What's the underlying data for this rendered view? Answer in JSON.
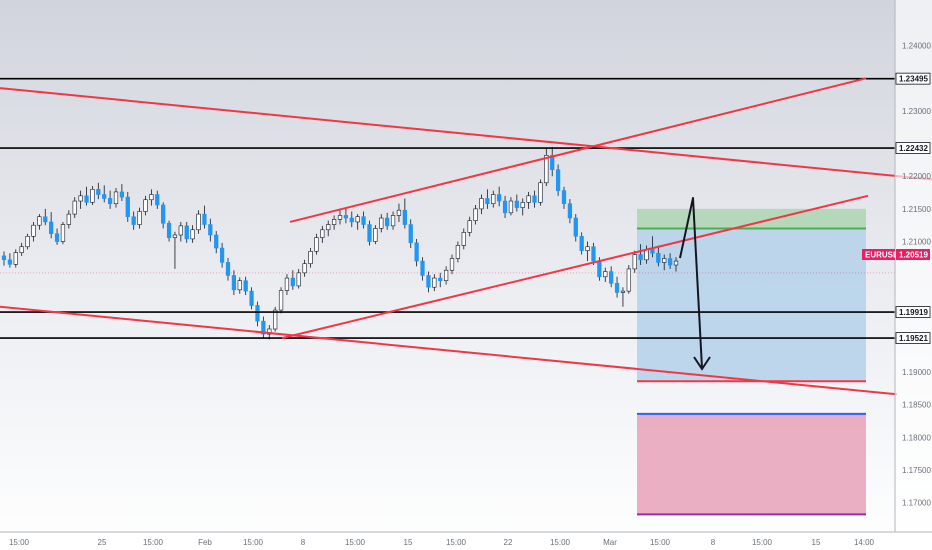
{
  "chart_data": {
    "type": "candlestick",
    "symbol": "EURUSD",
    "current_price": 1.20519,
    "y_ticks": [
      "1.24000",
      "1.23000",
      "1.22000",
      "1.21500",
      "1.21000",
      "1.19000",
      "1.18500",
      "1.18000",
      "1.17500",
      "1.17000"
    ],
    "ylim": [
      1.1655,
      1.247
    ],
    "x_ticks": [
      "15:00",
      "25",
      "15:00",
      "Feb",
      "15:00",
      "8",
      "15:00",
      "15",
      "15:00",
      "22",
      "15:00",
      "Mar",
      "15:00",
      "8",
      "15:00",
      "15",
      "14:00"
    ],
    "horizontal_levels": [
      {
        "label": "1.23495",
        "value": 1.23495
      },
      {
        "label": "1.22432",
        "value": 1.22432
      },
      {
        "label": "1.19919",
        "value": 1.19919
      },
      {
        "label": "1.19521",
        "value": 1.19521
      }
    ],
    "trendlines": [
      {
        "from": [
          0,
          1.2335
        ],
        "to": [
          932,
          1.2195
        ]
      },
      {
        "from": [
          0,
          1.2
        ],
        "to": [
          897,
          1.1866
        ]
      },
      {
        "from": [
          290,
          1.213
        ],
        "to": [
          866,
          1.235
        ]
      },
      {
        "from": [
          282,
          1.1952
        ],
        "to": [
          868,
          1.217
        ]
      }
    ],
    "position": {
      "target_zone": [
        1.212,
        1.215
      ],
      "reward_zone": [
        1.1886,
        1.215
      ],
      "risk_zone": [
        1.1682,
        1.1836
      ],
      "target_line": 1.212,
      "entry_line": 1.1886,
      "mid_line": 1.1836,
      "stop_line": 1.1682
    },
    "candles": [
      {
        "o": 1.2078,
        "h": 1.2085,
        "l": 1.2063,
        "c": 1.2072
      },
      {
        "o": 1.2072,
        "h": 1.2082,
        "l": 1.206,
        "c": 1.2065
      },
      {
        "o": 1.2065,
        "h": 1.2088,
        "l": 1.206,
        "c": 1.2083
      },
      {
        "o": 1.2083,
        "h": 1.2098,
        "l": 1.2078,
        "c": 1.2092
      },
      {
        "o": 1.2092,
        "h": 1.2112,
        "l": 1.2088,
        "c": 1.2108
      },
      {
        "o": 1.2108,
        "h": 1.213,
        "l": 1.21,
        "c": 1.2125
      },
      {
        "o": 1.2125,
        "h": 1.2142,
        "l": 1.2118,
        "c": 1.2138
      },
      {
        "o": 1.2138,
        "h": 1.215,
        "l": 1.2125,
        "c": 1.213
      },
      {
        "o": 1.213,
        "h": 1.2145,
        "l": 1.2105,
        "c": 1.2112
      },
      {
        "o": 1.2112,
        "h": 1.212,
        "l": 1.2095,
        "c": 1.21
      },
      {
        "o": 1.21,
        "h": 1.213,
        "l": 1.2096,
        "c": 1.2126
      },
      {
        "o": 1.2126,
        "h": 1.2148,
        "l": 1.212,
        "c": 1.2142
      },
      {
        "o": 1.2142,
        "h": 1.2168,
        "l": 1.2136,
        "c": 1.2162
      },
      {
        "o": 1.2162,
        "h": 1.2178,
        "l": 1.215,
        "c": 1.217
      },
      {
        "o": 1.217,
        "h": 1.2184,
        "l": 1.2155,
        "c": 1.216
      },
      {
        "o": 1.216,
        "h": 1.2185,
        "l": 1.2156,
        "c": 1.218
      },
      {
        "o": 1.218,
        "h": 1.219,
        "l": 1.2165,
        "c": 1.2172
      },
      {
        "o": 1.2172,
        "h": 1.2186,
        "l": 1.216,
        "c": 1.2166
      },
      {
        "o": 1.2166,
        "h": 1.2178,
        "l": 1.215,
        "c": 1.2158
      },
      {
        "o": 1.2158,
        "h": 1.2182,
        "l": 1.2152,
        "c": 1.2176
      },
      {
        "o": 1.2176,
        "h": 1.2188,
        "l": 1.2162,
        "c": 1.2168
      },
      {
        "o": 1.2168,
        "h": 1.2176,
        "l": 1.213,
        "c": 1.2138
      },
      {
        "o": 1.2138,
        "h": 1.2146,
        "l": 1.2118,
        "c": 1.2126
      },
      {
        "o": 1.2126,
        "h": 1.2152,
        "l": 1.212,
        "c": 1.2146
      },
      {
        "o": 1.2146,
        "h": 1.217,
        "l": 1.214,
        "c": 1.2164
      },
      {
        "o": 1.2164,
        "h": 1.218,
        "l": 1.2155,
        "c": 1.2172
      },
      {
        "o": 1.2172,
        "h": 1.2178,
        "l": 1.215,
        "c": 1.2156
      },
      {
        "o": 1.2156,
        "h": 1.216,
        "l": 1.212,
        "c": 1.2128
      },
      {
        "o": 1.2128,
        "h": 1.2132,
        "l": 1.21,
        "c": 1.2106
      },
      {
        "o": 1.2106,
        "h": 1.2115,
        "l": 1.2058,
        "c": 1.211
      },
      {
        "o": 1.211,
        "h": 1.213,
        "l": 1.21,
        "c": 1.2124
      },
      {
        "o": 1.2124,
        "h": 1.213,
        "l": 1.2098,
        "c": 1.2104
      },
      {
        "o": 1.2104,
        "h": 1.2125,
        "l": 1.2098,
        "c": 1.2118
      },
      {
        "o": 1.2118,
        "h": 1.2148,
        "l": 1.2112,
        "c": 1.2142
      },
      {
        "o": 1.2142,
        "h": 1.2155,
        "l": 1.212,
        "c": 1.2126
      },
      {
        "o": 1.2126,
        "h": 1.2135,
        "l": 1.21,
        "c": 1.211
      },
      {
        "o": 1.211,
        "h": 1.2116,
        "l": 1.2082,
        "c": 1.209
      },
      {
        "o": 1.209,
        "h": 1.2098,
        "l": 1.206,
        "c": 1.2068
      },
      {
        "o": 1.2068,
        "h": 1.2075,
        "l": 1.204,
        "c": 1.2048
      },
      {
        "o": 1.2048,
        "h": 1.2056,
        "l": 1.2018,
        "c": 1.2026
      },
      {
        "o": 1.2026,
        "h": 1.2045,
        "l": 1.202,
        "c": 1.204
      },
      {
        "o": 1.204,
        "h": 1.2046,
        "l": 1.2018,
        "c": 1.2024
      },
      {
        "o": 1.2024,
        "h": 1.203,
        "l": 1.1996,
        "c": 1.2002
      },
      {
        "o": 1.2002,
        "h": 1.2008,
        "l": 1.197,
        "c": 1.1978
      },
      {
        "o": 1.1978,
        "h": 1.1985,
        "l": 1.1952,
        "c": 1.1958
      },
      {
        "o": 1.1958,
        "h": 1.1972,
        "l": 1.195,
        "c": 1.1966
      },
      {
        "o": 1.1966,
        "h": 1.2,
        "l": 1.1962,
        "c": 1.1995
      },
      {
        "o": 1.1995,
        "h": 1.203,
        "l": 1.199,
        "c": 1.2025
      },
      {
        "o": 1.2025,
        "h": 1.205,
        "l": 1.2018,
        "c": 1.2044
      },
      {
        "o": 1.2044,
        "h": 1.2056,
        "l": 1.2026,
        "c": 1.2032
      },
      {
        "o": 1.2032,
        "h": 1.2058,
        "l": 1.2028,
        "c": 1.2052
      },
      {
        "o": 1.2052,
        "h": 1.2072,
        "l": 1.2046,
        "c": 1.2066
      },
      {
        "o": 1.2066,
        "h": 1.209,
        "l": 1.206,
        "c": 1.2085
      },
      {
        "o": 1.2085,
        "h": 1.2112,
        "l": 1.208,
        "c": 1.2106
      },
      {
        "o": 1.2106,
        "h": 1.2124,
        "l": 1.2098,
        "c": 1.2118
      },
      {
        "o": 1.2118,
        "h": 1.2132,
        "l": 1.2108,
        "c": 1.2126
      },
      {
        "o": 1.2126,
        "h": 1.214,
        "l": 1.2118,
        "c": 1.2134
      },
      {
        "o": 1.2134,
        "h": 1.2148,
        "l": 1.2126,
        "c": 1.214
      },
      {
        "o": 1.214,
        "h": 1.215,
        "l": 1.2128,
        "c": 1.2136
      },
      {
        "o": 1.2136,
        "h": 1.2146,
        "l": 1.2122,
        "c": 1.213
      },
      {
        "o": 1.213,
        "h": 1.2142,
        "l": 1.2118,
        "c": 1.2138
      },
      {
        "o": 1.2138,
        "h": 1.2146,
        "l": 1.212,
        "c": 1.2126
      },
      {
        "o": 1.2126,
        "h": 1.2132,
        "l": 1.2094,
        "c": 1.21
      },
      {
        "o": 1.21,
        "h": 1.2125,
        "l": 1.2096,
        "c": 1.212
      },
      {
        "o": 1.212,
        "h": 1.2142,
        "l": 1.2114,
        "c": 1.2136
      },
      {
        "o": 1.2136,
        "h": 1.2144,
        "l": 1.2118,
        "c": 1.2124
      },
      {
        "o": 1.2124,
        "h": 1.2146,
        "l": 1.2118,
        "c": 1.214
      },
      {
        "o": 1.214,
        "h": 1.2158,
        "l": 1.213,
        "c": 1.2148
      },
      {
        "o": 1.2148,
        "h": 1.2166,
        "l": 1.212,
        "c": 1.2126
      },
      {
        "o": 1.2126,
        "h": 1.2134,
        "l": 1.209,
        "c": 1.2098
      },
      {
        "o": 1.2098,
        "h": 1.2104,
        "l": 1.2062,
        "c": 1.207
      },
      {
        "o": 1.207,
        "h": 1.2076,
        "l": 1.204,
        "c": 1.2048
      },
      {
        "o": 1.2048,
        "h": 1.2054,
        "l": 1.2022,
        "c": 1.203
      },
      {
        "o": 1.203,
        "h": 1.205,
        "l": 1.2024,
        "c": 1.2044
      },
      {
        "o": 1.2044,
        "h": 1.2052,
        "l": 1.203,
        "c": 1.204
      },
      {
        "o": 1.204,
        "h": 1.2062,
        "l": 1.2034,
        "c": 1.2056
      },
      {
        "o": 1.2056,
        "h": 1.208,
        "l": 1.205,
        "c": 1.2074
      },
      {
        "o": 1.2074,
        "h": 1.21,
        "l": 1.2068,
        "c": 1.2094
      },
      {
        "o": 1.2094,
        "h": 1.212,
        "l": 1.2088,
        "c": 1.2114
      },
      {
        "o": 1.2114,
        "h": 1.2138,
        "l": 1.2108,
        "c": 1.2132
      },
      {
        "o": 1.2132,
        "h": 1.2156,
        "l": 1.2126,
        "c": 1.215
      },
      {
        "o": 1.215,
        "h": 1.2172,
        "l": 1.2142,
        "c": 1.2166
      },
      {
        "o": 1.2166,
        "h": 1.218,
        "l": 1.215,
        "c": 1.2158
      },
      {
        "o": 1.2158,
        "h": 1.2178,
        "l": 1.2152,
        "c": 1.2172
      },
      {
        "o": 1.2172,
        "h": 1.2184,
        "l": 1.2154,
        "c": 1.2162
      },
      {
        "o": 1.2162,
        "h": 1.217,
        "l": 1.2136,
        "c": 1.2144
      },
      {
        "o": 1.2144,
        "h": 1.2168,
        "l": 1.214,
        "c": 1.2162
      },
      {
        "o": 1.2162,
        "h": 1.2172,
        "l": 1.2146,
        "c": 1.2152
      },
      {
        "o": 1.2152,
        "h": 1.2166,
        "l": 1.214,
        "c": 1.216
      },
      {
        "o": 1.216,
        "h": 1.2176,
        "l": 1.215,
        "c": 1.217
      },
      {
        "o": 1.217,
        "h": 1.2178,
        "l": 1.2152,
        "c": 1.216
      },
      {
        "o": 1.216,
        "h": 1.2195,
        "l": 1.2155,
        "c": 1.219
      },
      {
        "o": 1.219,
        "h": 1.2242,
        "l": 1.2185,
        "c": 1.2232
      },
      {
        "o": 1.2232,
        "h": 1.2245,
        "l": 1.22,
        "c": 1.221
      },
      {
        "o": 1.221,
        "h": 1.2218,
        "l": 1.217,
        "c": 1.2178
      },
      {
        "o": 1.2178,
        "h": 1.2184,
        "l": 1.215,
        "c": 1.2158
      },
      {
        "o": 1.2158,
        "h": 1.2165,
        "l": 1.2128,
        "c": 1.2136
      },
      {
        "o": 1.2136,
        "h": 1.2142,
        "l": 1.21,
        "c": 1.2108
      },
      {
        "o": 1.2108,
        "h": 1.2114,
        "l": 1.208,
        "c": 1.2086
      },
      {
        "o": 1.2086,
        "h": 1.21,
        "l": 1.207,
        "c": 1.2092
      },
      {
        "o": 1.2092,
        "h": 1.2098,
        "l": 1.2064,
        "c": 1.207
      },
      {
        "o": 1.207,
        "h": 1.2076,
        "l": 1.204,
        "c": 1.2046
      },
      {
        "o": 1.2046,
        "h": 1.206,
        "l": 1.2038,
        "c": 1.2054
      },
      {
        "o": 1.2054,
        "h": 1.2062,
        "l": 1.203,
        "c": 1.2036
      },
      {
        "o": 1.2036,
        "h": 1.2046,
        "l": 1.2014,
        "c": 1.2022
      },
      {
        "o": 1.2022,
        "h": 1.203,
        "l": 1.2,
        "c": 1.2024
      },
      {
        "o": 1.2024,
        "h": 1.2064,
        "l": 1.202,
        "c": 1.2058
      },
      {
        "o": 1.2058,
        "h": 1.2086,
        "l": 1.2052,
        "c": 1.208
      },
      {
        "o": 1.208,
        "h": 1.2096,
        "l": 1.2064,
        "c": 1.2072
      },
      {
        "o": 1.2072,
        "h": 1.2094,
        "l": 1.2066,
        "c": 1.2088
      },
      {
        "o": 1.2088,
        "h": 1.2108,
        "l": 1.2076,
        "c": 1.2082
      },
      {
        "o": 1.2082,
        "h": 1.2094,
        "l": 1.2062,
        "c": 1.2068
      },
      {
        "o": 1.2068,
        "h": 1.208,
        "l": 1.2056,
        "c": 1.2074
      },
      {
        "o": 1.2074,
        "h": 1.2082,
        "l": 1.2058,
        "c": 1.2064
      },
      {
        "o": 1.2064,
        "h": 1.2076,
        "l": 1.2054,
        "c": 1.207
      }
    ]
  },
  "axis_label": {
    "symbol": "EURUSD",
    "price": "1.20519"
  },
  "colors": {
    "up_candle": "#ffffff",
    "down_candle": "#2196f3",
    "wick": "#131722",
    "trendline": "#f23645",
    "level_line": "#000000",
    "target_zone": "#b2d8b4",
    "reward_zone": "#b7d3ea",
    "risk_zone": "#e8a6bb",
    "target_line": "#4caf50",
    "mid_line": "#2962ff",
    "stop_line": "#9c27b0",
    "symbol_badge": "#e91e63",
    "arrow": "#131722"
  }
}
